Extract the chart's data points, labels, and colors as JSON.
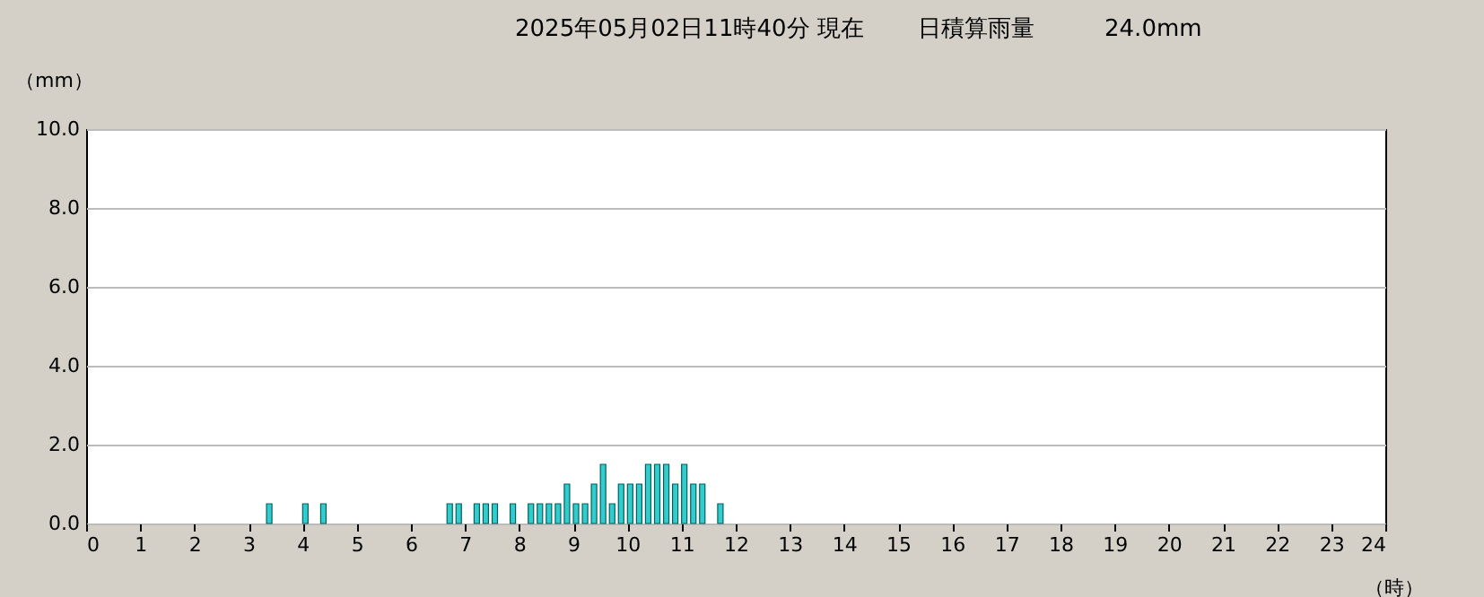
{
  "chart_data": {
    "type": "bar",
    "title": "2025年05月02日11時40分  現在　　 日積算雨量　　　24.0mm",
    "ylabel": "（mm）",
    "xlabel": "（時）",
    "x": [
      3.333,
      4.0,
      4.333,
      6.667,
      6.833,
      7.167,
      7.333,
      7.5,
      7.833,
      8.167,
      8.333,
      8.5,
      8.667,
      8.833,
      9.0,
      9.167,
      9.333,
      9.5,
      9.667,
      9.833,
      10.0,
      10.167,
      10.333,
      10.5,
      10.667,
      10.833,
      11.0,
      11.167,
      11.333,
      11.667
    ],
    "values": [
      0.5,
      0.5,
      0.5,
      0.5,
      0.5,
      0.5,
      0.5,
      0.5,
      0.5,
      0.5,
      0.5,
      0.5,
      0.5,
      1.0,
      0.5,
      0.5,
      1.0,
      1.5,
      0.5,
      1.0,
      1.0,
      1.0,
      1.5,
      1.5,
      1.5,
      1.0,
      1.5,
      1.0,
      1.0,
      0.5
    ],
    "color": "#33cccc",
    "xlim": [
      0,
      24
    ],
    "xticks": [
      0,
      1,
      2,
      3,
      4,
      5,
      6,
      7,
      8,
      9,
      10,
      11,
      12,
      13,
      14,
      15,
      16,
      17,
      18,
      19,
      20,
      21,
      22,
      23,
      24
    ],
    "ylim": [
      0,
      10
    ],
    "yticks": [
      {
        "value": 0,
        "label": "0.0"
      },
      {
        "value": 2,
        "label": "2.0"
      },
      {
        "value": 4,
        "label": "4.0"
      },
      {
        "value": 6,
        "label": "6.0"
      },
      {
        "value": 8,
        "label": "8.0"
      },
      {
        "value": 10,
        "label": "10.0"
      }
    ],
    "grid": "y"
  }
}
